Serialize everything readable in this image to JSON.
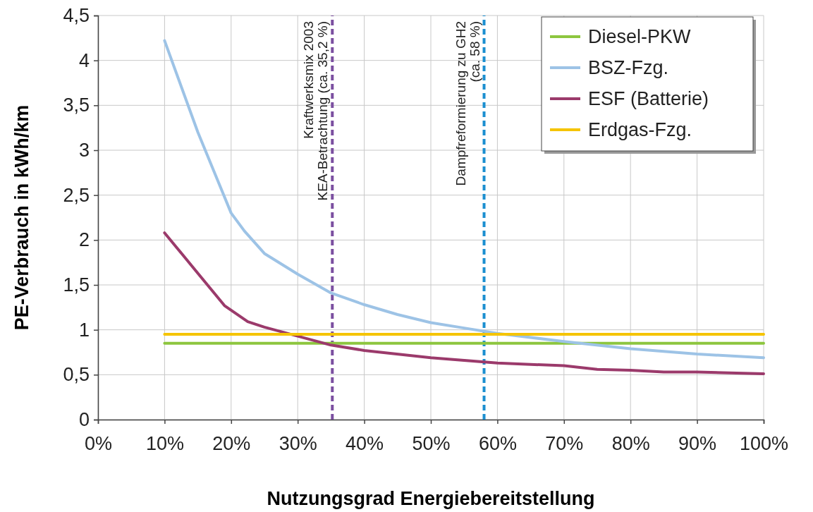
{
  "chart_data": {
    "type": "line",
    "xlabel": "Nutzungsgrad Energiebereitstellung",
    "ylabel": "PE-Verbrauch in kWh/km",
    "xlim": [
      0,
      100
    ],
    "ylim": [
      0,
      4.5
    ],
    "xticks": [
      {
        "value": 0,
        "label": "0%"
      },
      {
        "value": 10,
        "label": "10%"
      },
      {
        "value": 20,
        "label": "20%"
      },
      {
        "value": 30,
        "label": "30%"
      },
      {
        "value": 40,
        "label": "40%"
      },
      {
        "value": 50,
        "label": "50%"
      },
      {
        "value": 60,
        "label": "60%"
      },
      {
        "value": 70,
        "label": "70%"
      },
      {
        "value": 80,
        "label": "80%"
      },
      {
        "value": 90,
        "label": "90%"
      },
      {
        "value": 100,
        "label": "100%"
      }
    ],
    "yticks": [
      0,
      {
        "value": 0.5,
        "label": "0,5"
      },
      1,
      {
        "value": 1.5,
        "label": "1,5"
      },
      2,
      {
        "value": 2.5,
        "label": "2,5"
      },
      3,
      {
        "value": 3.5,
        "label": "3,5"
      },
      4,
      {
        "value": 4.5,
        "label": "4,5"
      }
    ],
    "grid": true,
    "legend": "top right",
    "marker": "none",
    "line_style": "solid",
    "series": [
      {
        "name": "Diesel-PKW",
        "color": "#8dc63f",
        "x": [
          10,
          100
        ],
        "values": [
          0.85,
          0.85
        ]
      },
      {
        "name": "BSZ-Fzg.",
        "color": "#9dc3e6",
        "x": [
          10,
          15,
          20,
          22,
          25,
          30,
          35,
          40,
          45,
          50,
          55,
          60,
          70,
          80,
          90,
          100
        ],
        "values": [
          4.22,
          3.2,
          2.3,
          2.1,
          1.85,
          1.62,
          1.41,
          1.28,
          1.17,
          1.08,
          1.02,
          0.96,
          0.87,
          0.79,
          0.73,
          0.69
        ]
      },
      {
        "name": "ESF (Batterie)",
        "color": "#9b3a6b",
        "x": [
          10,
          15,
          19,
          22.5,
          25,
          30,
          35,
          40,
          50,
          60,
          70,
          75,
          80,
          85,
          90,
          100
        ],
        "values": [
          2.08,
          1.63,
          1.27,
          1.09,
          1.03,
          0.93,
          0.83,
          0.77,
          0.69,
          0.63,
          0.6,
          0.56,
          0.55,
          0.53,
          0.53,
          0.51
        ]
      },
      {
        "name": "Erdgas-Fzg.",
        "color": "#f5c400",
        "x": [
          10,
          100
        ],
        "values": [
          0.95,
          0.95
        ]
      }
    ],
    "ref_lines": [
      {
        "axis": "x",
        "value": 35.2,
        "label": "Kraftwerksmix 2003\nKEA-Betrachtung (ca. 35,2 %)",
        "color": "#7b4fa0",
        "line_style": "dashed"
      },
      {
        "axis": "x",
        "value": 58,
        "label": "Dampfreformierung zu GH2\n(ca. 58 %)",
        "color": "#1b8fd0",
        "line_style": "dashed"
      }
    ]
  }
}
